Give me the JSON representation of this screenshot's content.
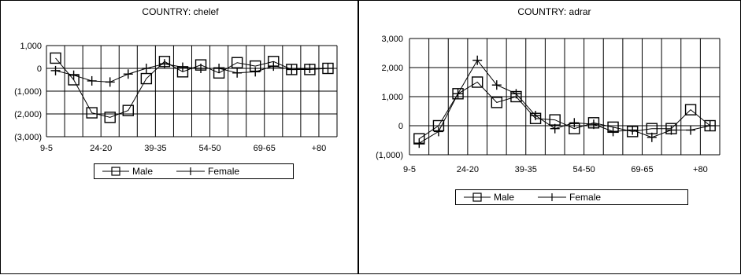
{
  "chart_data": [
    {
      "type": "line",
      "title": "COUNTRY: chelef",
      "xlabel": "",
      "ylabel": "",
      "ylim": [
        -3000,
        1000
      ],
      "ytick_labels": [
        "1,000",
        "0",
        "(1,000)",
        "(2,000)",
        "(3,000)"
      ],
      "xtick_labels": [
        "9-5",
        "24-20",
        "39-35",
        "54-50",
        "69-65",
        "+80"
      ],
      "grid": true,
      "legend_placement": "bottom",
      "series": [
        {
          "name": "Male",
          "marker": "square",
          "values": [
            450,
            -500,
            -1950,
            -2150,
            -1850,
            -450,
            300,
            -150,
            150,
            -200,
            250,
            100,
            300,
            -50,
            -50,
            0
          ]
        },
        {
          "name": "Female",
          "marker": "plus",
          "values": [
            -100,
            -300,
            -550,
            -600,
            -250,
            0,
            200,
            50,
            0,
            0,
            -200,
            -150,
            100,
            -50,
            0,
            0
          ]
        }
      ]
    },
    {
      "type": "line",
      "title": "COUNTRY:  adrar",
      "xlabel": "",
      "ylabel": "",
      "ylim": [
        -1000,
        3000
      ],
      "ytick_labels": [
        "3,000",
        "2,000",
        "1,000",
        "0",
        "(1,000)"
      ],
      "xtick_labels": [
        "9-5",
        "24-20",
        "39-35",
        "54-50",
        "69-65",
        "+80"
      ],
      "grid": true,
      "legend_placement": "bottom",
      "series": [
        {
          "name": "Male",
          "marker": "square",
          "values": [
            -450,
            0,
            1100,
            1500,
            800,
            1000,
            250,
            200,
            -100,
            100,
            -50,
            -200,
            -100,
            -100,
            550,
            0
          ]
        },
        {
          "name": "Female",
          "marker": "plus",
          "values": [
            -600,
            -200,
            1100,
            2250,
            1400,
            1100,
            350,
            -100,
            100,
            50,
            -200,
            -150,
            -400,
            -150,
            -150,
            0
          ]
        }
      ]
    }
  ],
  "legend": {
    "male_label": "Male",
    "female_label": "Female"
  }
}
